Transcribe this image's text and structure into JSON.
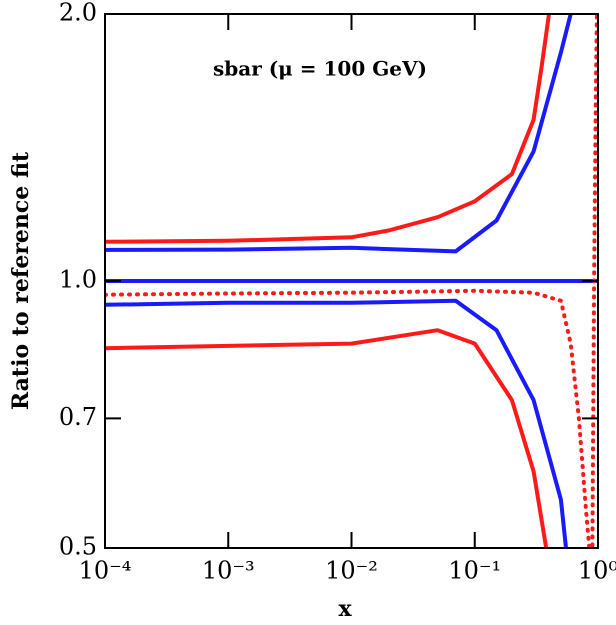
{
  "chart_data": {
    "type": "line",
    "annotation": "sbar (μ = 100 GeV)",
    "xlabel": "x",
    "ylabel": "Ratio to reference fit",
    "xscale": "log",
    "yscale": "log",
    "xlim": [
      0.0001,
      1
    ],
    "ylim": [
      0.5,
      2.0
    ],
    "xticks": [
      {
        "value": 0.0001,
        "label": "10⁻⁴"
      },
      {
        "value": 0.001,
        "label": "10⁻³"
      },
      {
        "value": 0.01,
        "label": "10⁻²"
      },
      {
        "value": 0.1,
        "label": "10⁻¹"
      },
      {
        "value": 1,
        "label": "10⁰"
      }
    ],
    "yticks": [
      0.5,
      0.7,
      {
        "value": 1,
        "label": "1.0"
      },
      {
        "value": 2,
        "label": "2.0"
      }
    ],
    "series": [
      {
        "color": "#ff1a1a",
        "style": "solid",
        "x": [
          0.0001,
          0.001,
          0.01,
          0.02,
          0.05,
          0.1,
          0.2,
          0.3,
          0.35,
          0.4
        ],
        "values": [
          1.107,
          1.11,
          1.12,
          1.14,
          1.18,
          1.23,
          1.32,
          1.52,
          1.75,
          2.0
        ]
      },
      {
        "color": "#ff1a1a",
        "style": "solid",
        "x": [
          0.0001,
          0.001,
          0.01,
          0.05,
          0.1,
          0.2,
          0.3,
          0.38
        ],
        "values": [
          0.84,
          0.845,
          0.85,
          0.88,
          0.85,
          0.734,
          0.61,
          0.5
        ]
      },
      {
        "color": "#1a1aff",
        "style": "solid",
        "x": [
          0.0001,
          0.001,
          0.01,
          0.07,
          0.15,
          0.3,
          0.5,
          0.6
        ],
        "values": [
          1.084,
          1.085,
          1.09,
          1.08,
          1.17,
          1.4,
          1.81,
          2.0
        ]
      },
      {
        "color": "#1a1aff",
        "style": "solid",
        "x": [
          0.0001,
          0.001,
          0.01,
          0.07,
          0.15,
          0.3,
          0.5,
          0.55
        ],
        "values": [
          0.94,
          0.945,
          0.945,
          0.95,
          0.88,
          0.734,
          0.567,
          0.5
        ]
      },
      {
        "color": "#1a1aff",
        "style": "solid",
        "x": [
          0.0001,
          1
        ],
        "values": [
          1.0,
          1.0
        ]
      },
      {
        "color": "#ff1a1a",
        "style": "dotted",
        "x": [
          0.0001,
          0.001,
          0.01,
          0.1,
          0.3,
          0.5,
          0.6,
          0.7,
          0.8,
          0.85,
          0.9,
          0.93,
          0.96,
          0.98
        ],
        "values": [
          0.965,
          0.968,
          0.97,
          0.975,
          0.97,
          0.95,
          0.85,
          0.7,
          0.55,
          0.5,
          0.5,
          1.0,
          1.6,
          2.0
        ]
      }
    ]
  }
}
